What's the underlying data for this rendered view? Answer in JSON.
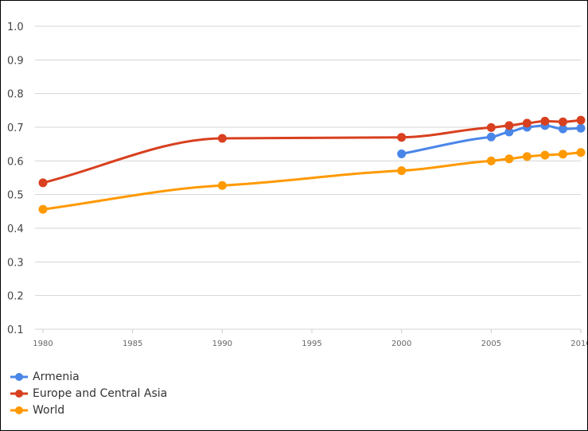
{
  "chart_data": {
    "type": "line",
    "title": "",
    "xlabel": "",
    "ylabel": "",
    "x": [
      1980,
      1990,
      2000,
      2005,
      2006,
      2007,
      2008,
      2009,
      2010
    ],
    "xlim": [
      1980,
      2010
    ],
    "ylim": [
      0.1,
      1.0
    ],
    "x_ticks": [
      "1980",
      "1985",
      "1990",
      "1995",
      "2000",
      "2005",
      "2010"
    ],
    "y_ticks": [
      "0.1",
      "0.2",
      "0.3",
      "0.4",
      "0.5",
      "0.6",
      "0.7",
      "0.8",
      "0.9",
      "1.0"
    ],
    "grid": true,
    "legend_position": "bottom-left",
    "series": [
      {
        "name": "Armenia",
        "color": "#4a86e8",
        "values": [
          null,
          null,
          0.621,
          0.671,
          0.686,
          0.7,
          0.705,
          0.695,
          0.697
        ]
      },
      {
        "name": "Europe and Central Asia",
        "color": "#d8401f",
        "values": [
          0.535,
          0.667,
          0.67,
          0.699,
          0.705,
          0.712,
          0.718,
          0.716,
          0.721
        ]
      },
      {
        "name": "World",
        "color": "#ff9900",
        "values": [
          0.456,
          0.527,
          0.571,
          0.6,
          0.606,
          0.613,
          0.617,
          0.62,
          0.625
        ]
      }
    ]
  }
}
